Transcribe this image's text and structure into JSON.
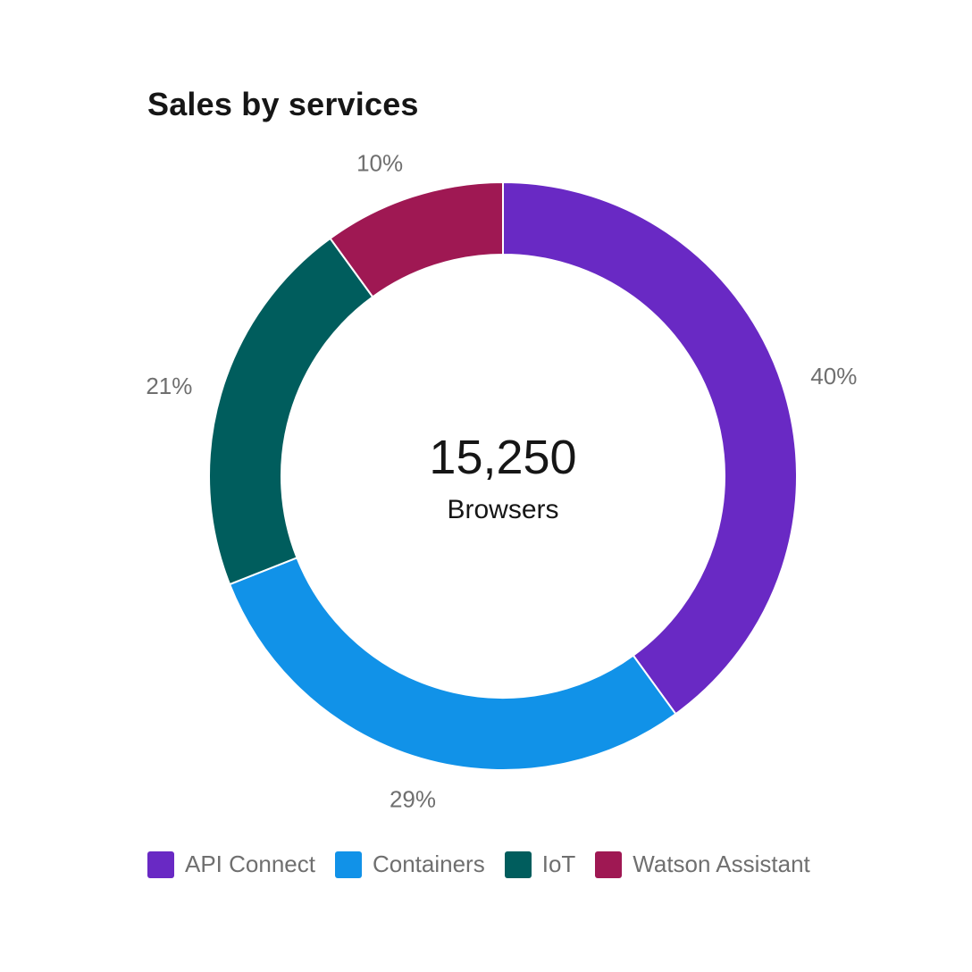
{
  "chart_data": {
    "type": "pie",
    "variant": "donut",
    "title": "Sales by services",
    "center": {
      "value": "15,250",
      "label": "Browsers"
    },
    "slices": [
      {
        "name": "API Connect",
        "percent": 40,
        "label": "40%",
        "color": "#6929c4"
      },
      {
        "name": "Containers",
        "percent": 29,
        "label": "29%",
        "color": "#1192e8"
      },
      {
        "name": "IoT",
        "percent": 21,
        "label": "21%",
        "color": "#005d5d"
      },
      {
        "name": "Watson Assistant",
        "percent": 10,
        "label": "10%",
        "color": "#9f1853"
      }
    ],
    "legend_position": "bottom-left"
  }
}
